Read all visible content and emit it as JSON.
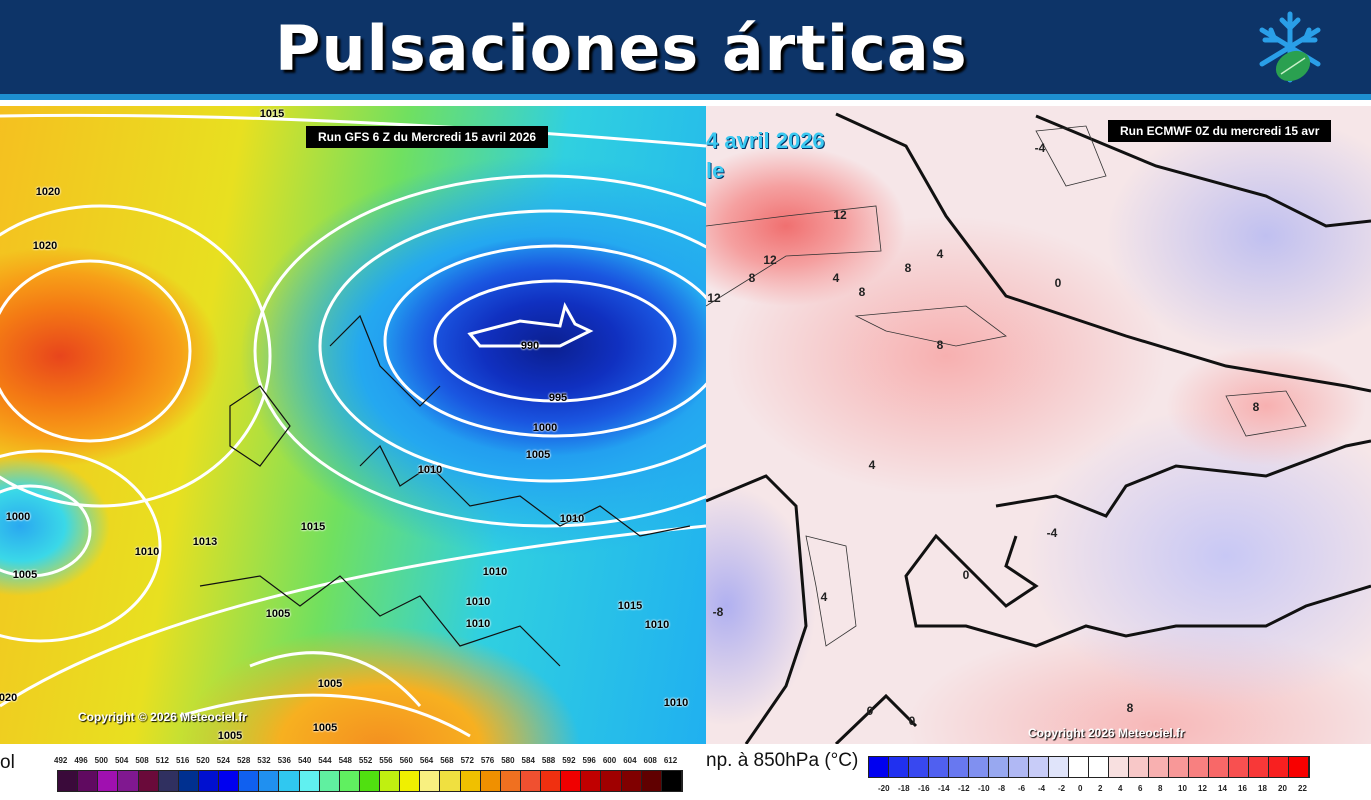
{
  "header": {
    "title": "Pulsaciones árticas",
    "logo": "snowflake-leaf-logo"
  },
  "gfs_map": {
    "run_label": "Run GFS 6 Z du Mercredi 15 avril 2026",
    "copyright": "Copyright © 2026 Meteociel.fr",
    "isobar_labels": [
      "1015",
      "1020",
      "1020",
      "990",
      "995",
      "1000",
      "1005",
      "1010",
      "1000",
      "1015",
      "1013",
      "1010",
      "1010",
      "1005",
      "1010",
      "1005",
      "1015",
      "1010",
      "1010",
      "1005",
      "1010",
      "1005",
      "1005",
      "1010",
      "1020"
    ],
    "legend_title_partial": "ol",
    "legend_ticks": [
      "492",
      "496",
      "500",
      "504",
      "508",
      "512",
      "516",
      "520",
      "524",
      "528",
      "532",
      "536",
      "540",
      "544",
      "548",
      "552",
      "556",
      "560",
      "564",
      "568",
      "572",
      "576",
      "580",
      "584",
      "588",
      "592",
      "596",
      "600",
      "604",
      "608",
      "612"
    ],
    "legend_colors": [
      "#3a0a3a",
      "#600a60",
      "#a010b0",
      "#801890",
      "#6a0a3a",
      "#303060",
      "#003090",
      "#0010d0",
      "#0000f0",
      "#1060f0",
      "#2090f0",
      "#30c8f0",
      "#60f0f0",
      "#60f0a0",
      "#60f060",
      "#50e010",
      "#c0f010",
      "#f0f000",
      "#f8f080",
      "#f0e040",
      "#f0c000",
      "#f09000",
      "#f07020",
      "#f05030",
      "#f03010",
      "#f00000",
      "#c00000",
      "#a00000",
      "#800000",
      "#600000",
      "#000000"
    ]
  },
  "ecmwf_map": {
    "run_label": "Run ECMWF 0Z du mercredi 15 avr",
    "partial_date": "4 avril 2026",
    "partial_word": "le",
    "copyright": "Copyright 2026 Meteociel.fr",
    "temp_labels": [
      "12",
      "12",
      "8",
      "12",
      "4",
      "8",
      "8",
      "4",
      "0",
      "8",
      "8",
      "4",
      "-4",
      "0",
      "4",
      "-8",
      "0",
      "0",
      "8",
      "-4"
    ],
    "legend_title_partial": "np. à 850hPa (°C)",
    "legend_ticks": [
      "-20",
      "-18",
      "-16",
      "-14",
      "-12",
      "-10",
      "-8",
      "-6",
      "-4",
      "-2",
      "0",
      "2",
      "4",
      "6",
      "8",
      "10",
      "12",
      "14",
      "16",
      "18",
      "20",
      "22"
    ],
    "legend_colors": [
      "#0000f0",
      "#2030f0",
      "#3848f0",
      "#5060f0",
      "#6878f0",
      "#8090f0",
      "#98a8f0",
      "#b0b8f4",
      "#c8ccf8",
      "#e0e4fa",
      "#ffffff",
      "#ffffff",
      "#f8e0e0",
      "#f8c8c8",
      "#f8b0b0",
      "#f89898",
      "#f88080",
      "#f86868",
      "#f85050",
      "#f83838",
      "#f82020",
      "#f80000"
    ]
  }
}
